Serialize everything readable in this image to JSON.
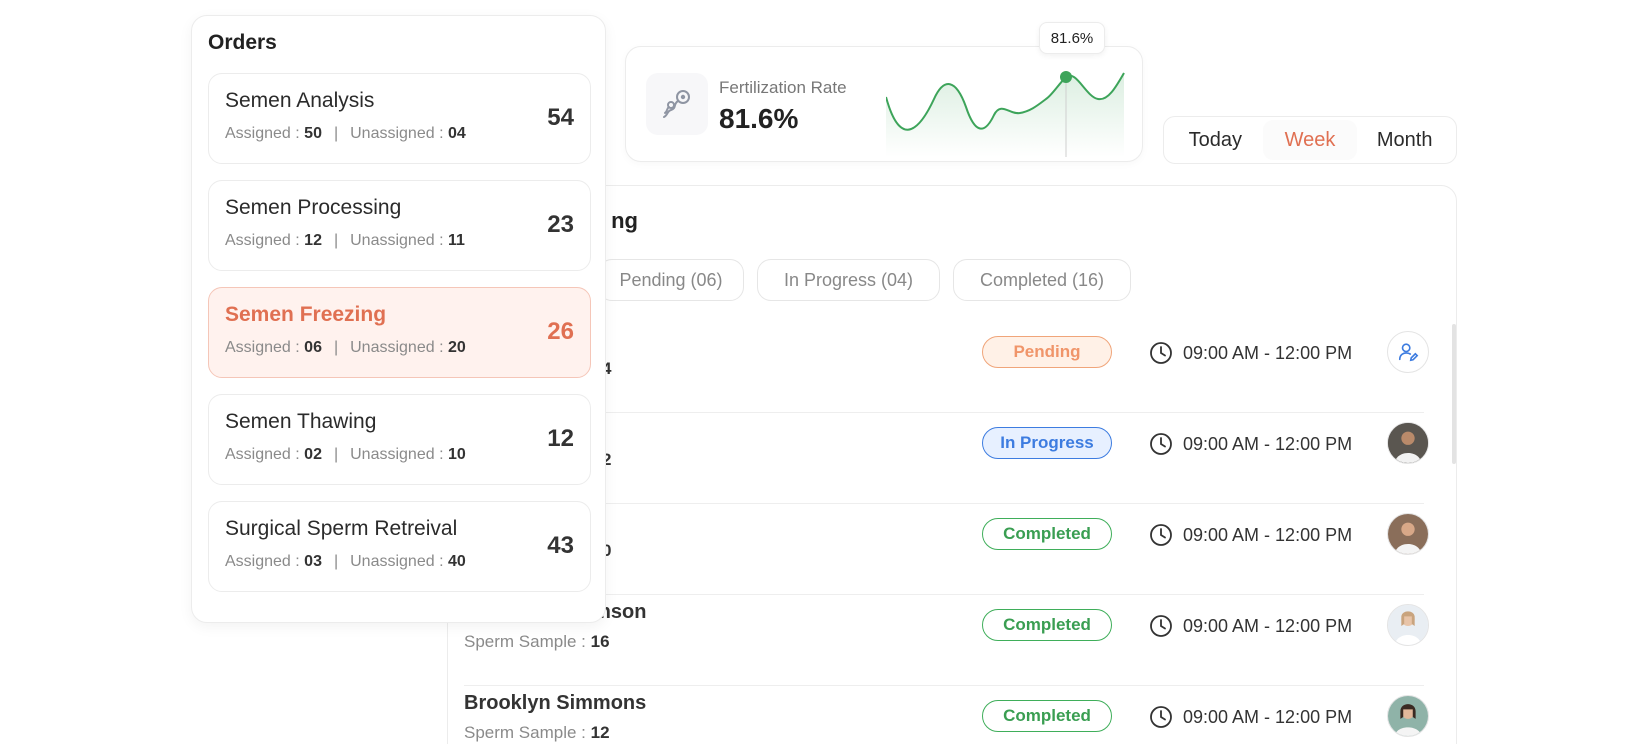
{
  "fertilization": {
    "label": "Fertilization Rate",
    "value": "81.6%",
    "tooltip": "81.6%",
    "line_color": "#3da45a"
  },
  "period": {
    "options": [
      "Today",
      "Week",
      "Month"
    ],
    "selected": "Week",
    "accent": "#e07052"
  },
  "panel": {
    "title_visible": "ng",
    "tabs": [
      "Pending (06)",
      "In Progress (04)",
      "Completed (16)"
    ]
  },
  "rows": [
    {
      "name": "",
      "sample_label": "",
      "sample_value": "4",
      "status": "Pending",
      "time": "09:00 AM - 12:00 PM",
      "avatar": "assign-user-icon"
    },
    {
      "name": "",
      "sample_label": "",
      "sample_value": "2",
      "status": "In Progress",
      "time": "09:00 AM - 12:00 PM",
      "avatar": "doctor-avatar"
    },
    {
      "name": "",
      "sample_label": "",
      "sample_value": "0",
      "status": "Completed",
      "time": "09:00 AM - 12:00 PM",
      "avatar": "doctor-avatar"
    },
    {
      "name": "amson",
      "sample_label": "Sperm Sample :",
      "sample_value": "16",
      "status": "Completed",
      "time": "09:00 AM - 12:00 PM",
      "avatar": "doctor-avatar"
    },
    {
      "name": "Brooklyn Simmons",
      "sample_label": "Sperm Sample :",
      "sample_value": "12",
      "status": "Completed",
      "time": "09:00 AM - 12:00 PM",
      "avatar": "doctor-avatar"
    }
  ],
  "orders": {
    "title": "Orders",
    "assigned_label": "Assigned :",
    "unassigned_label": "Unassigned :",
    "items": [
      {
        "name": "Semen Analysis",
        "assigned": "50",
        "unassigned": "04",
        "count": "54",
        "active": false
      },
      {
        "name": "Semen Processing",
        "assigned": "12",
        "unassigned": "11",
        "count": "23",
        "active": false
      },
      {
        "name": "Semen Freezing",
        "assigned": "06",
        "unassigned": "20",
        "count": "26",
        "active": true
      },
      {
        "name": "Semen Thawing",
        "assigned": "02",
        "unassigned": "10",
        "count": "12",
        "active": false
      },
      {
        "name": "Surgical Sperm Retreival",
        "assigned": "03",
        "unassigned": "40",
        "count": "43",
        "active": false
      }
    ]
  }
}
